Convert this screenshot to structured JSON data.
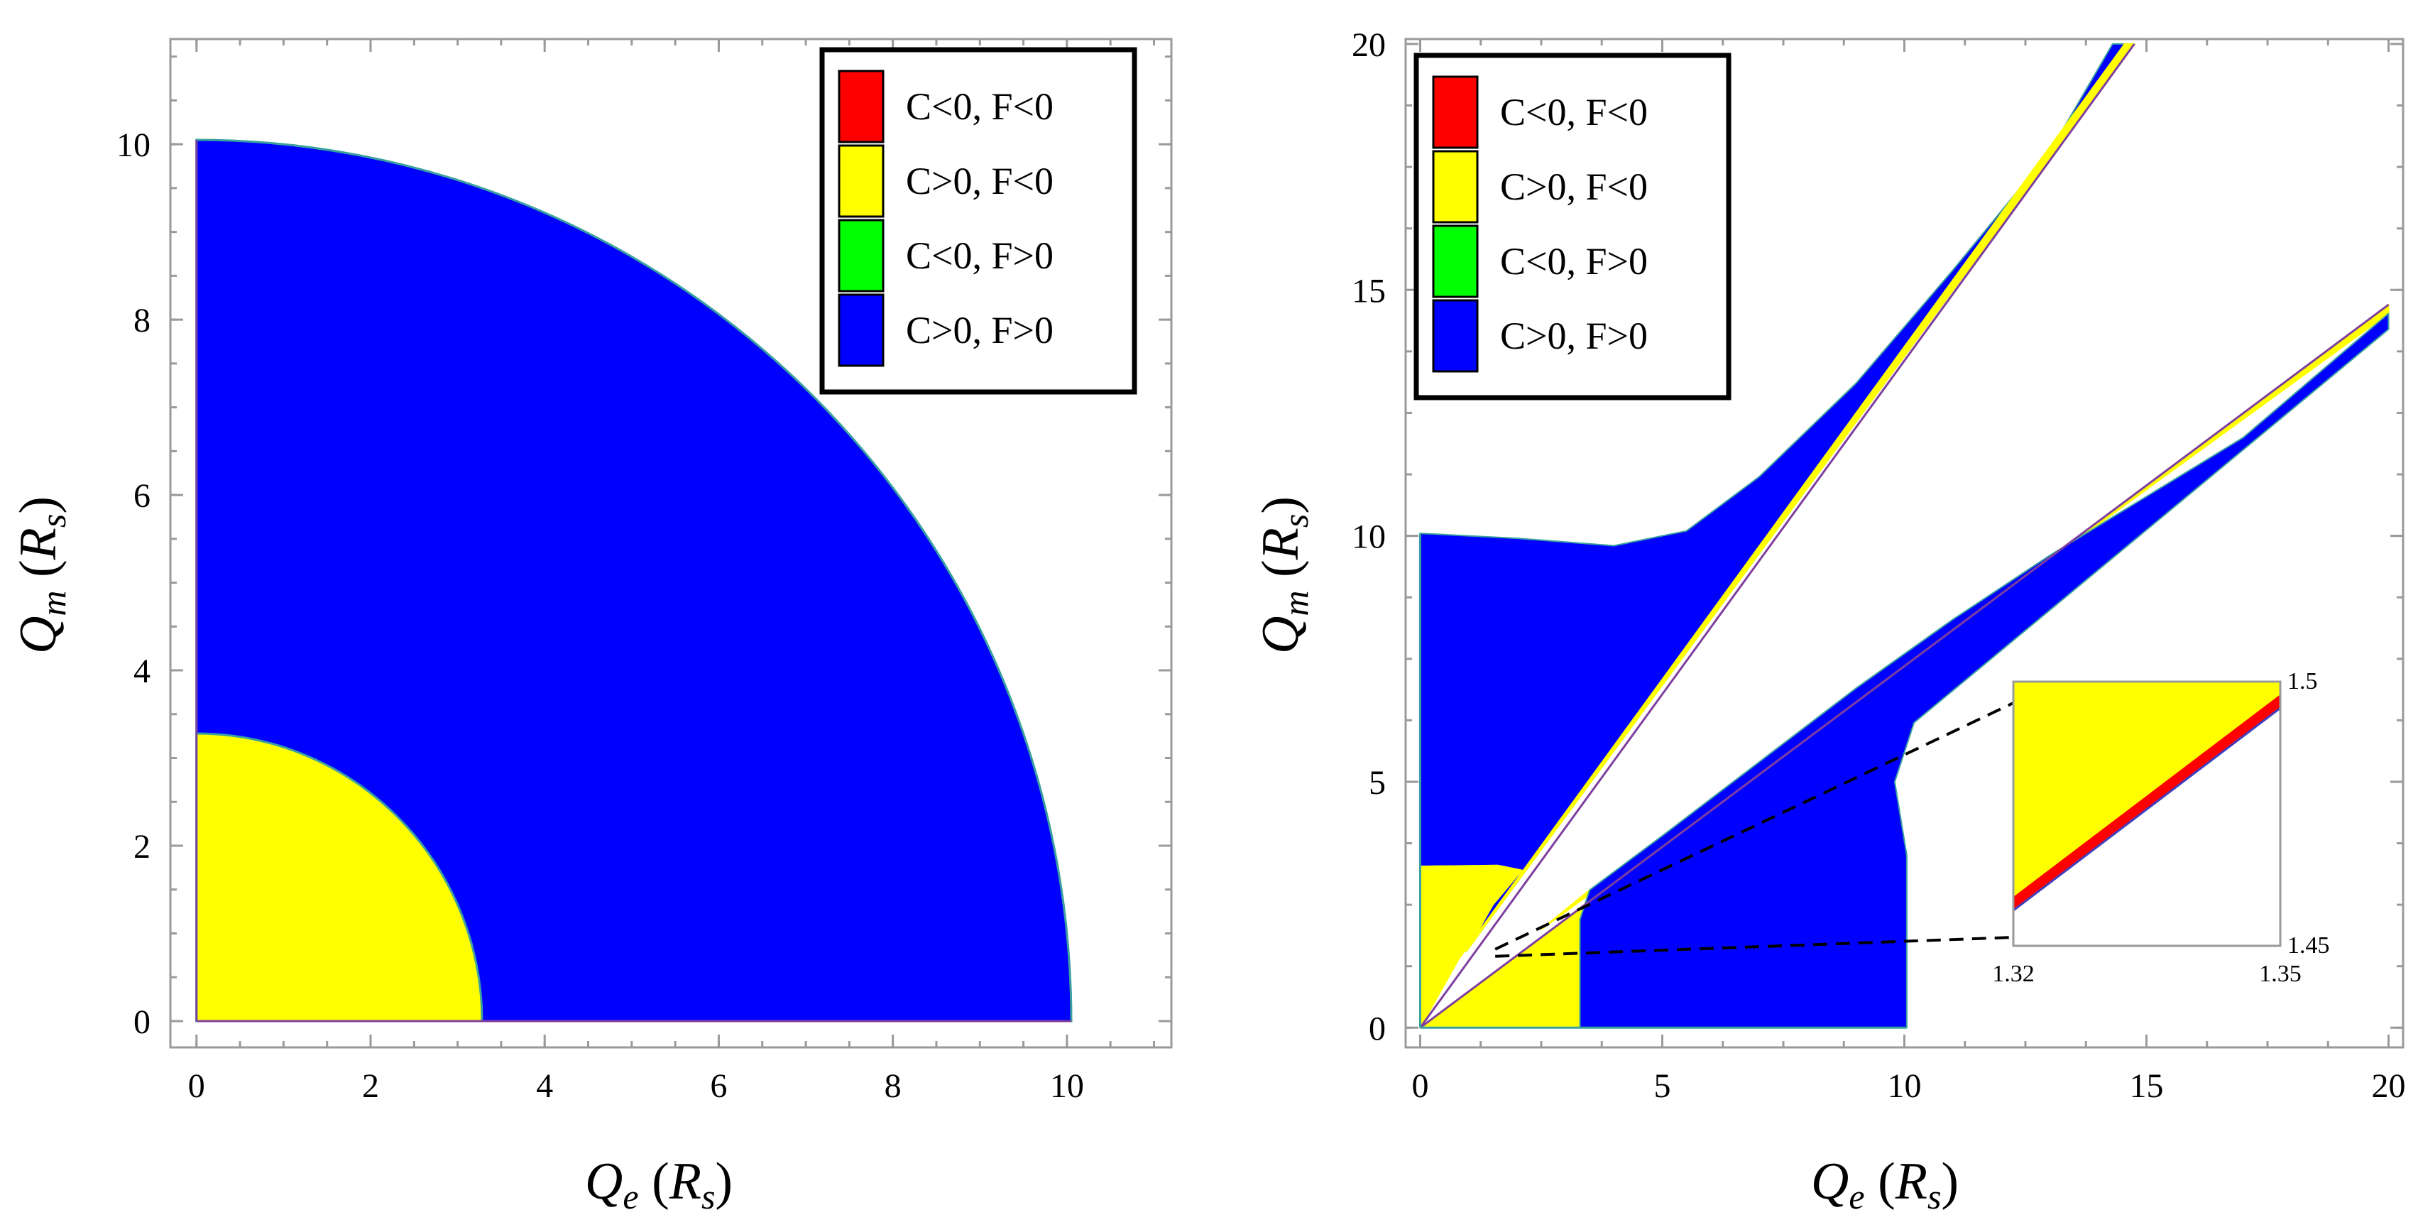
{
  "figure": {
    "legend_entries": [
      {
        "label": "C<0, F<0",
        "color": "#ff0000"
      },
      {
        "label": "C>0, F<0",
        "color": "#ffff00"
      },
      {
        "label": "C<0, F>0",
        "color": "#00ff00"
      },
      {
        "label": "C>0, F>0",
        "color": "#0000ff"
      }
    ],
    "boundary_color": "#7f3f9f"
  },
  "chart_data": [
    {
      "type": "area",
      "title": "",
      "xlabel": "Q_e (R_s)",
      "ylabel": "Q_m (R_s)",
      "xlim": [
        -0.3,
        11.2
      ],
      "ylim": [
        -0.3,
        11.2
      ],
      "xticks": [
        0,
        2,
        4,
        6,
        8,
        10
      ],
      "yticks": [
        0,
        2,
        4,
        6,
        8,
        10
      ],
      "x_ticklabels": [
        "0",
        "2",
        "4",
        "6",
        "8",
        "10"
      ],
      "y_ticklabels": [
        "0",
        "2",
        "4",
        "6",
        "8",
        "10"
      ],
      "legend_position": "top-right",
      "regions": [
        {
          "label": "C>0, F>0",
          "color": "#0000ff",
          "shape": "quarter-disc",
          "radius": 10.05
        },
        {
          "label": "C>0, F<0",
          "color": "#ffff00",
          "shape": "quarter-disc",
          "radius": 3.28
        }
      ]
    },
    {
      "type": "area",
      "title": "",
      "xlabel": "Q_e (R_s)",
      "ylabel": "Q_m (R_s)",
      "xlim": [
        -0.3,
        20.3
      ],
      "ylim": [
        -0.4,
        20.1
      ],
      "xticks": [
        0,
        5,
        10,
        15,
        20
      ],
      "yticks": [
        0,
        5,
        10,
        15,
        20
      ],
      "x_ticklabels": [
        "0",
        "5",
        "10",
        "15",
        "20"
      ],
      "y_ticklabels": [
        "0",
        "5",
        "10",
        "15",
        "20"
      ],
      "legend_position": "top-left",
      "regions": [
        {
          "label": "C>0, F>0",
          "color": "#0000ff",
          "name": "upper-blue-lobe",
          "points": [
            [
              0,
              10.05
            ],
            [
              2,
              9.95
            ],
            [
              4,
              9.8
            ],
            [
              5.5,
              10.1
            ],
            [
              7,
              11.2
            ],
            [
              9,
              13.1
            ],
            [
              11,
              15.4
            ],
            [
              13,
              17.8
            ],
            [
              14.3,
              20
            ],
            [
              14.75,
              20
            ],
            [
              0.95,
              1.55
            ],
            [
              1.5,
              2.5
            ],
            [
              2.1,
              3.2
            ],
            [
              1.6,
              3.3
            ],
            [
              0,
              3.28
            ]
          ]
        },
        {
          "label": "C>0, F<0",
          "color": "#ffff00",
          "name": "upper-yellow-band",
          "points": [
            [
              0,
              3.28
            ],
            [
              1.6,
              3.3
            ],
            [
              2.1,
              3.2
            ],
            [
              1.5,
              2.5
            ],
            [
              0.95,
              1.55
            ],
            [
              14.75,
              20
            ],
            [
              14.55,
              20
            ],
            [
              0.8,
              1.4
            ],
            [
              0,
              0
            ]
          ]
        },
        {
          "label": "C>0, F<0",
          "color": "#ffff00",
          "name": "lower-yellow-band",
          "points": [
            [
              0,
              0
            ],
            [
              20,
              14.7
            ],
            [
              20,
              14.52
            ],
            [
              2.5,
              2.0
            ],
            [
              3.5,
              2.8
            ],
            [
              3.3,
              2.2
            ],
            [
              3.3,
              0
            ]
          ]
        },
        {
          "label": "C>0, F>0",
          "color": "#0000ff",
          "name": "lower-blue-lobe",
          "points": [
            [
              3.3,
              0
            ],
            [
              3.3,
              2.2
            ],
            [
              3.5,
              2.8
            ],
            [
              5,
              3.9
            ],
            [
              7,
              5.4
            ],
            [
              9,
              6.9
            ],
            [
              11,
              8.3
            ],
            [
              13,
              9.6
            ],
            [
              15,
              10.8
            ],
            [
              17,
              12.0
            ],
            [
              20,
              14.52
            ],
            [
              20,
              14.2
            ],
            [
              10.2,
              6.2
            ],
            [
              9.8,
              5.0
            ],
            [
              10.05,
              3.5
            ],
            [
              10.05,
              0
            ]
          ]
        }
      ],
      "boundary_lines": [
        {
          "from": [
            0,
            0
          ],
          "to": [
            14.75,
            20
          ]
        },
        {
          "from": [
            0,
            0
          ],
          "to": [
            20,
            14.7
          ]
        }
      ],
      "inset": {
        "type": "area",
        "xlim": [
          1.32,
          1.35
        ],
        "ylim": [
          1.45,
          1.5
        ],
        "x_ticklabels": [
          "1.32",
          "1.35"
        ],
        "y_ticklabels": [
          "1.5",
          "1.45"
        ],
        "source_point": [
          1.33,
          1.48
        ],
        "regions": [
          {
            "label": "C>0, F<0",
            "color": "#ffff00",
            "points": [
              [
                1.32,
                1.5
              ],
              [
                1.35,
                1.5
              ],
              [
                1.35,
                1.4975
              ],
              [
                1.32,
                1.4592
              ]
            ]
          },
          {
            "label": "C<0, F<0",
            "color": "#ff0000",
            "points": [
              [
                1.32,
                1.4592
              ],
              [
                1.35,
                1.4975
              ],
              [
                1.35,
                1.495
              ],
              [
                1.32,
                1.4567
              ]
            ]
          }
        ]
      }
    }
  ]
}
